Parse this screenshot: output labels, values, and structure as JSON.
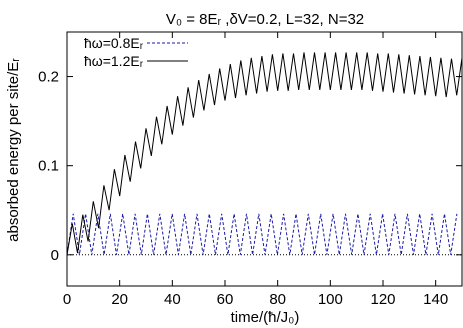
{
  "chart_data": {
    "type": "line",
    "title": "V₀ = 8Eᵣ ,δV=0.2, L=32, N=32",
    "xlabel": "time/(ħ/J₀)",
    "ylabel": "absorbed energy per site/Eᵣ",
    "xlim": [
      0,
      150
    ],
    "ylim": [
      -0.035,
      0.25
    ],
    "xticks": [
      0,
      20,
      40,
      60,
      80,
      100,
      120,
      140
    ],
    "xtick_labels": [
      "0",
      "20",
      "40",
      "60",
      "80",
      "100",
      "120",
      "140"
    ],
    "yticks": [
      0,
      0.1,
      0.2
    ],
    "ytick_labels": [
      "0",
      "0.1",
      "0.2"
    ],
    "grid": false,
    "legend_position": "top-left",
    "reference_line": {
      "y": 0,
      "style": "dotted"
    },
    "series": [
      {
        "name": "ħω=0.8Eᵣ",
        "style": "dashed",
        "color": "#1a1aa8",
        "x": [
          0,
          2.35,
          4.7,
          7.05,
          9.4,
          11.75,
          14.1,
          16.45,
          18.8,
          21.15,
          23.5,
          25.85,
          28.2,
          30.55,
          32.9,
          35.25,
          37.6,
          39.95,
          42.3,
          44.65,
          47,
          49.35,
          51.7,
          54.05,
          56.4,
          58.75,
          61.1,
          63.45,
          65.8,
          68.15,
          70.5,
          72.85,
          75.2,
          77.55,
          79.9,
          82.25,
          84.6,
          86.95,
          89.3,
          91.65,
          94,
          96.35,
          98.7,
          101.05,
          103.4,
          105.75,
          108.1,
          110.45,
          112.8,
          115.15,
          117.5,
          119.85,
          122.2,
          124.55,
          126.9,
          129.25,
          131.6,
          133.95,
          136.3,
          138.65,
          141,
          143.35,
          145.7,
          148.05
        ],
        "y": [
          0,
          0.046,
          0,
          0.046,
          0,
          0.046,
          0,
          0.046,
          0,
          0.046,
          0,
          0.046,
          0,
          0.046,
          0,
          0.046,
          0,
          0.046,
          0,
          0.046,
          0,
          0.046,
          0,
          0.046,
          0,
          0.046,
          0,
          0.046,
          0,
          0.046,
          0,
          0.046,
          0,
          0.046,
          0,
          0.046,
          0,
          0.046,
          0,
          0.046,
          0,
          0.046,
          0,
          0.046,
          0,
          0.046,
          0,
          0.046,
          0,
          0.046,
          0,
          0.046,
          0,
          0.046,
          0,
          0.046,
          0,
          0.046,
          0,
          0.046,
          0,
          0.046,
          0,
          0.046
        ]
      },
      {
        "name": "ħω=1.2Eᵣ",
        "style": "solid",
        "color": "#000000",
        "x": [
          0,
          2,
          4,
          6,
          8,
          10,
          12,
          14,
          16,
          18,
          20,
          22,
          24,
          26,
          28,
          30,
          32,
          34,
          36,
          38,
          40,
          42,
          44,
          46,
          48,
          50,
          52,
          54,
          56,
          58,
          60,
          62,
          64,
          66,
          68,
          70,
          72,
          74,
          76,
          78,
          80,
          82,
          84,
          86,
          88,
          90,
          92,
          94,
          96,
          98,
          100,
          102,
          104,
          106,
          108,
          110,
          112,
          114,
          116,
          118,
          120,
          122,
          124,
          126,
          128,
          130,
          132,
          134,
          136,
          138,
          140,
          142,
          144,
          146,
          148,
          150
        ],
        "y": [
          0,
          0.035,
          0.002,
          0.045,
          0.015,
          0.06,
          0.03,
          0.078,
          0.05,
          0.096,
          0.066,
          0.112,
          0.082,
          0.127,
          0.097,
          0.142,
          0.111,
          0.155,
          0.124,
          0.167,
          0.135,
          0.178,
          0.145,
          0.188,
          0.154,
          0.196,
          0.162,
          0.203,
          0.168,
          0.209,
          0.173,
          0.214,
          0.176,
          0.218,
          0.179,
          0.221,
          0.181,
          0.223,
          0.183,
          0.225,
          0.184,
          0.226,
          0.184,
          0.226,
          0.185,
          0.227,
          0.185,
          0.227,
          0.185,
          0.227,
          0.185,
          0.227,
          0.185,
          0.227,
          0.185,
          0.227,
          0.185,
          0.227,
          0.184,
          0.226,
          0.183,
          0.226,
          0.182,
          0.225,
          0.181,
          0.224,
          0.18,
          0.223,
          0.179,
          0.222,
          0.178,
          0.221,
          0.177,
          0.22,
          0.179,
          0.221
        ]
      }
    ]
  }
}
